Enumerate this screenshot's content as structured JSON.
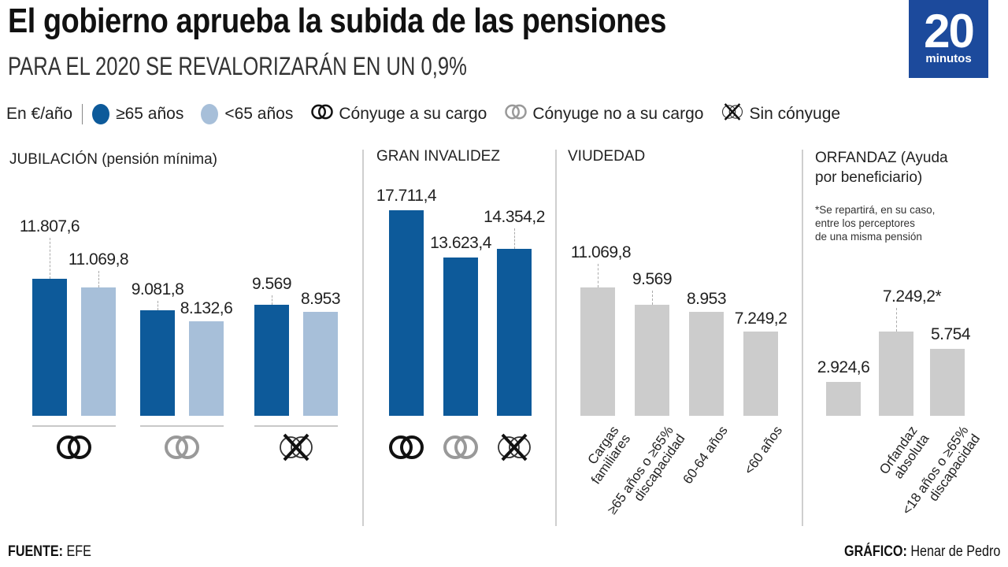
{
  "header": {
    "title": "El gobierno aprueba la subida de las pensiones",
    "subtitle": "PARA EL 2020 SE REVALORIZARÁN EN UN 0,9%",
    "logo": {
      "number": "20",
      "word": "minutos",
      "color": "#1c4a9c"
    }
  },
  "legend": {
    "unit": "En €/año",
    "items": [
      {
        "label": "≥65 años",
        "icon": "dark-blue-dot-icon",
        "color": "#0d5a9a"
      },
      {
        "label": "<65 años",
        "icon": "light-blue-dot-icon",
        "color": "#a7bfd9"
      },
      {
        "label": "Cónyuge a su cargo",
        "icon": "rings-black-icon",
        "color": "#111111"
      },
      {
        "label": "Cónyuge no a su cargo",
        "icon": "rings-grey-icon",
        "color": "#999999"
      },
      {
        "label": "Sin cónyuge",
        "icon": "rings-crossed-icon",
        "color": "#111111"
      }
    ]
  },
  "colors": {
    "dark_blue": "#0d5a9a",
    "light_blue": "#a7bfd9",
    "grey_bar": "#cccccc"
  },
  "chart_data": [
    {
      "type": "bar",
      "title": "JUBILACIÓN (pensión mínima)",
      "unit": "€/año",
      "categories": [
        "Cónyuge a su cargo",
        "Cónyuge no a su cargo",
        "Sin cónyuge"
      ],
      "category_icons": [
        "rings-black-icon",
        "rings-grey-icon",
        "rings-crossed-icon"
      ],
      "series": [
        {
          "name": "≥65 años",
          "values": [
            11807.6,
            9081.8,
            9569
          ],
          "labels": [
            "11.807,6",
            "9.081,8",
            "9.569"
          ]
        },
        {
          "name": "<65 años",
          "values": [
            11069.8,
            8132.6,
            8953
          ],
          "labels": [
            "11.069,8",
            "8.132,6",
            "8.953"
          ]
        }
      ]
    },
    {
      "type": "bar",
      "title": "GRAN  INVALIDEZ",
      "unit": "€/año",
      "categories": [
        "Cónyuge a su cargo",
        "Cónyuge no a su cargo",
        "Sin cónyuge"
      ],
      "category_icons": [
        "rings-black-icon",
        "rings-grey-icon",
        "rings-crossed-icon"
      ],
      "series": [
        {
          "name": "≥65 años",
          "values": [
            17711.4,
            13623.4,
            14354.2
          ],
          "labels": [
            "17.711,4",
            "13.623,4",
            "14.354,2"
          ]
        }
      ]
    },
    {
      "type": "bar",
      "title": "VIUDEDAD",
      "unit": "€/año",
      "categories": [
        "Cargas familiares",
        "≥65 años o ≥65% discapacidad",
        "60-64 años",
        "<60 años"
      ],
      "category_lines": [
        [
          "Cargas",
          "familiares"
        ],
        [
          "≥65 años o ≥65%",
          "discapacidad"
        ],
        [
          "60-64 años"
        ],
        [
          "<60 años"
        ]
      ],
      "values": [
        11069.8,
        9569,
        8953,
        7249.2
      ],
      "labels": [
        "11.069,8",
        "9.569",
        "8.953",
        "7.249,2"
      ]
    },
    {
      "type": "bar",
      "title_lines": [
        "ORFANDAZ (Ayuda",
        "por beneficiario)"
      ],
      "title": "ORFANDAZ (Ayuda por beneficiario)",
      "note_lines": [
        "*Se repartirá, en su caso,",
        "entre los perceptores",
        "de una misma pensión"
      ],
      "unit": "€/año",
      "categories": [
        "",
        "Orfandaz absoluta",
        "<18 años o ≥65% discapacidad"
      ],
      "category_lines": [
        [],
        [
          "Orfandaz",
          "absoluta"
        ],
        [
          "<18 años o ≥65%",
          "discapacidad"
        ]
      ],
      "values": [
        2924.6,
        7249.2,
        5754
      ],
      "labels": [
        "2.924,6",
        "7.249,2*",
        "5.754"
      ]
    }
  ],
  "footer": {
    "source_label": "FUENTE:",
    "source_value": " EFE",
    "credit_label": "GRÁFICO:",
    "credit_value": " Henar de Pedro"
  }
}
